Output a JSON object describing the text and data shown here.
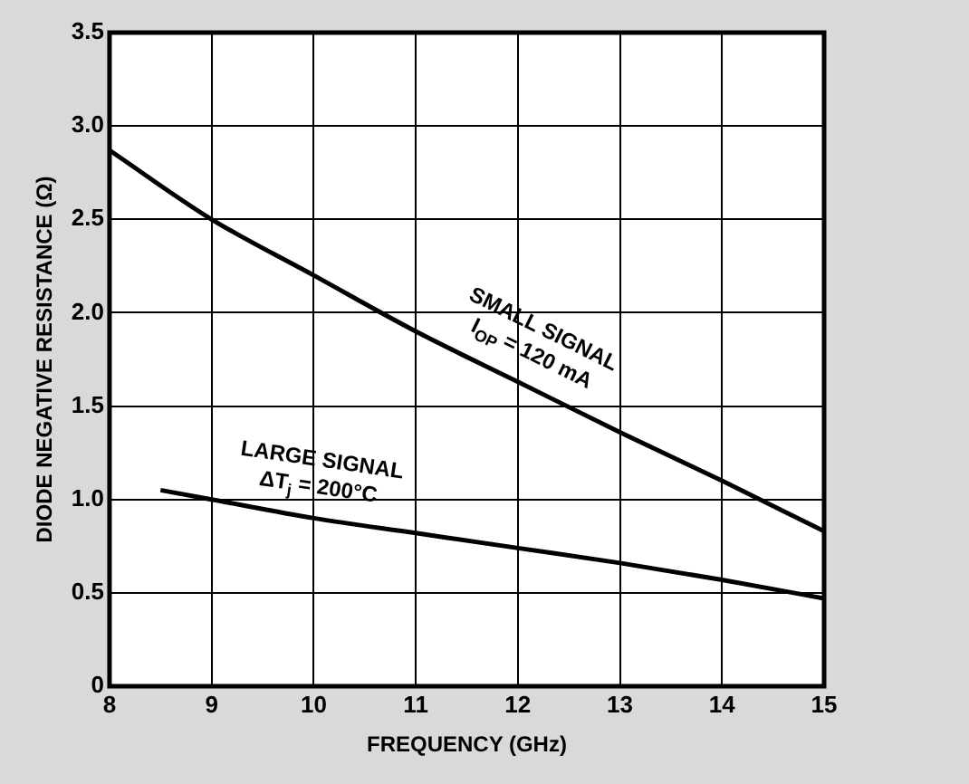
{
  "chart_data": {
    "type": "line",
    "xlabel": "FREQUENCY (GHz)",
    "ylabel": "DIODE NEGATIVE RESISTANCE (Ω)",
    "xlim": [
      8,
      15
    ],
    "xticks": [
      8,
      9,
      10,
      11,
      12,
      13,
      14,
      15
    ],
    "ylim": [
      0,
      3.5
    ],
    "yticks": [
      0,
      0.5,
      {
        "value": 1,
        "label": "1.0"
      },
      {
        "value": 1.5,
        "label": "1.5"
      },
      {
        "value": 2,
        "label": "2.0"
      },
      {
        "value": 2.5,
        "label": "2.5"
      },
      {
        "value": 3,
        "label": "3.0"
      },
      {
        "value": 3.5,
        "label": "3.5"
      }
    ],
    "grid": true,
    "marker": "none",
    "line_style": "solid",
    "series": [
      {
        "color": "#000000",
        "x": [
          8,
          9,
          10,
          11,
          12,
          13,
          14,
          15
        ],
        "values": [
          2.87,
          2.5,
          2.2,
          1.9,
          1.63,
          1.36,
          1.1,
          0.83
        ]
      },
      {
        "color": "#000000",
        "x": [
          8.5,
          9,
          10,
          11,
          12,
          13,
          14,
          15
        ],
        "values": [
          1.05,
          1.0,
          0.9,
          0.82,
          0.74,
          0.66,
          0.57,
          0.47
        ]
      }
    ],
    "annotations": [
      {
        "text": "SMALL SIGNAL\nI$_{OP}$ = 120 mA",
        "x": 12,
        "y": 1.63
      },
      {
        "text": "LARGE SIGNAL\nΔT$_{j}$ = 200°C",
        "x": 10,
        "y": 0.9
      }
    ]
  }
}
